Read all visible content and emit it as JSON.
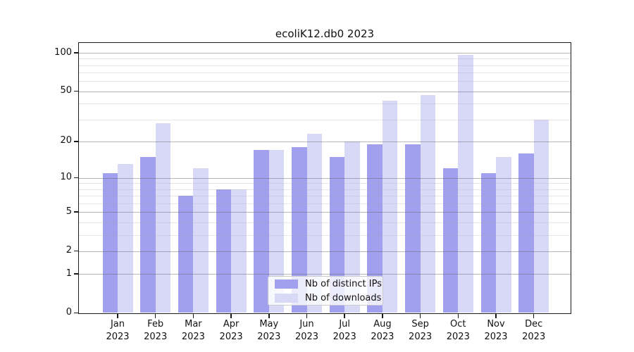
{
  "title": "ecoliK12.db0 2023",
  "colors": {
    "distinct_ips": "#a0a0ee",
    "downloads": "#d8d8f7",
    "axis": "#1a1a1a",
    "grid_major": "#c4c4c4",
    "grid_minor": "#e9e9e9",
    "background": "#ffffff"
  },
  "legend": {
    "items": [
      {
        "label": "Nb of distinct IPs",
        "color_key": "distinct_ips"
      },
      {
        "label": "Nb of downloads",
        "color_key": "downloads"
      }
    ]
  },
  "chart_data": {
    "type": "bar",
    "title": "ecoliK12.db0 2023",
    "months": [
      "Jan",
      "Feb",
      "Mar",
      "Apr",
      "May",
      "Jun",
      "Jul",
      "Aug",
      "Sep",
      "Oct",
      "Nov",
      "Dec"
    ],
    "year_label": "2023",
    "categories": [
      "Jan 2023",
      "Feb 2023",
      "Mar 2023",
      "Apr 2023",
      "May 2023",
      "Jun 2023",
      "Jul 2023",
      "Aug 2023",
      "Sep 2023",
      "Oct 2023",
      "Nov 2023",
      "Dec 2023"
    ],
    "series": [
      {
        "name": "Nb of distinct IPs",
        "values": [
          11,
          15,
          7,
          8,
          17,
          18,
          15,
          19,
          19,
          12,
          11,
          16
        ]
      },
      {
        "name": "Nb of downloads",
        "values": [
          13,
          28,
          12,
          8,
          17,
          23,
          20,
          42,
          47,
          96,
          15,
          30
        ]
      }
    ],
    "xlabel": "",
    "ylabel": "",
    "yscale": "symlog (log(1+y))",
    "y_major_ticks": [
      0,
      1,
      2,
      5,
      10,
      20,
      50,
      100
    ],
    "y_minor_ticks": [
      3,
      4,
      6,
      7,
      8,
      9,
      30,
      40,
      60,
      70,
      80,
      90
    ],
    "ylim": [
      0,
      119
    ],
    "grid": true,
    "legend_position": "lower center inside plot"
  }
}
